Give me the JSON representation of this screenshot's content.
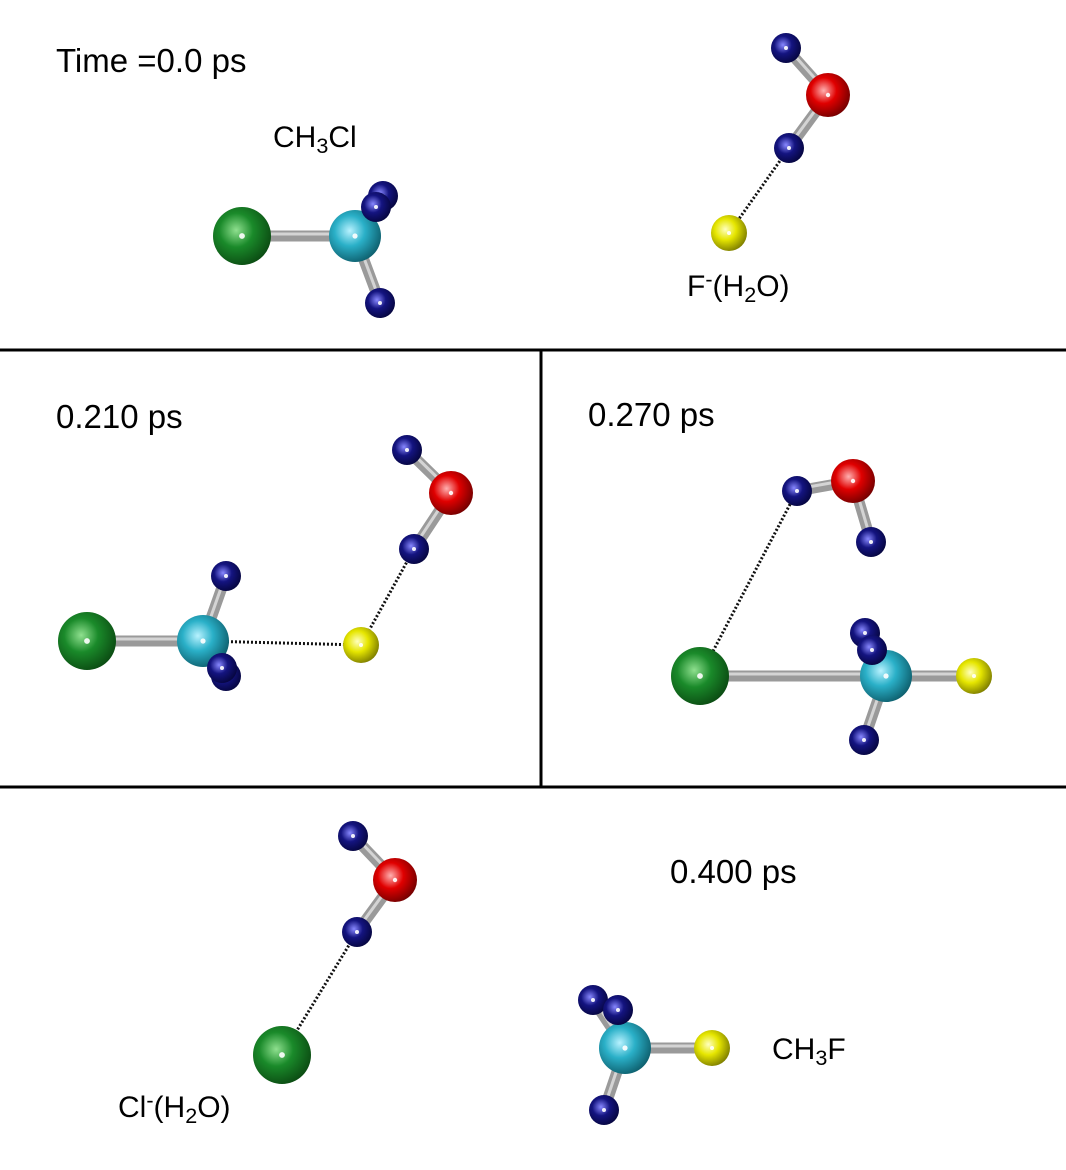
{
  "colors": {
    "background": "#ffffff",
    "divider": "#000000",
    "bond": "#9a9a9a",
    "hbond": "#111111",
    "atoms": {
      "Cl": "#1a8a2a",
      "C": "#2ab0c8",
      "H": "#141480",
      "O": "#e00000",
      "F": "#e6e600"
    }
  },
  "panels": {
    "p1": {
      "time": "Time =0.0 ps",
      "reactant_a": {
        "base": "CH",
        "sub": "3",
        "tail": "Cl"
      },
      "reactant_b": {
        "base": "F",
        "sup": "-",
        "mid": "(H",
        "sub": "2",
        "tail": "O)"
      }
    },
    "p2": {
      "time": "0.210 ps"
    },
    "p3": {
      "time": "0.270 ps"
    },
    "p4": {
      "time": "0.400 ps",
      "product_a": {
        "base": "Cl",
        "sup": "-",
        "mid": "(H",
        "sub": "2",
        "tail": "O)"
      },
      "product_b": {
        "base": "CH",
        "sub": "3",
        "tail": "F"
      }
    }
  }
}
